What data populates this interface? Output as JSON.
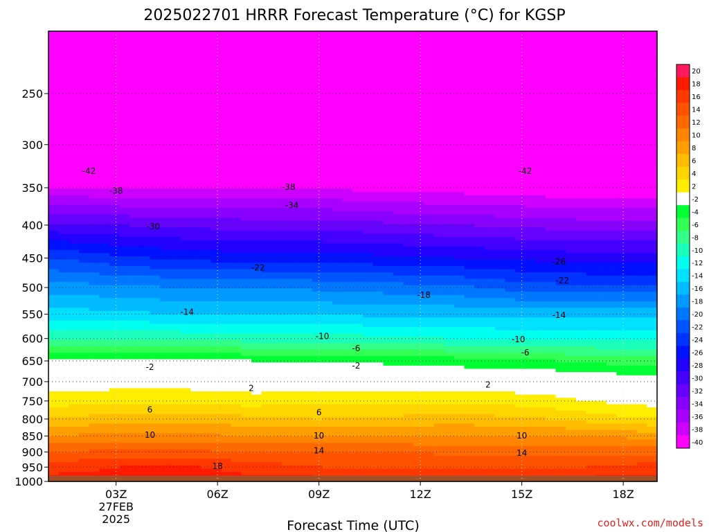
{
  "title": "2025022701 HRRR Forecast Temperature (°C) for KGSP",
  "credit": "coolwx.com/models",
  "colors": {
    "credit": "#e0201a",
    "ground": "#a0522d"
  },
  "chart_data": {
    "type": "heatmap",
    "title": "2025022701 HRRR Forecast Temperature (°C) for KGSP",
    "xlabel": "Forecast Time (UTC)",
    "ylabel": "",
    "x_range": [
      1,
      19
    ],
    "y_range": [
      1000,
      200
    ],
    "y_scale": "log-pressure",
    "x_ticks": [
      {
        "x": 3,
        "lines": [
          "03Z",
          "27FEB",
          "2025"
        ]
      },
      {
        "x": 6,
        "lines": [
          "06Z"
        ]
      },
      {
        "x": 9,
        "lines": [
          "09Z"
        ]
      },
      {
        "x": 12,
        "lines": [
          "12Z"
        ]
      },
      {
        "x": 15,
        "lines": [
          "15Z"
        ]
      },
      {
        "x": 18,
        "lines": [
          "18Z"
        ]
      }
    ],
    "y_ticks": [
      250,
      300,
      350,
      400,
      450,
      500,
      550,
      600,
      650,
      700,
      750,
      800,
      850,
      900,
      950,
      1000
    ],
    "grid": true,
    "legend": "colorbar-right",
    "colorbar": {
      "levels": [
        20,
        18,
        16,
        14,
        12,
        10,
        8,
        6,
        4,
        2,
        -2,
        -4,
        -6,
        -8,
        -10,
        -12,
        -14,
        -16,
        -18,
        -20,
        -22,
        -24,
        -26,
        -28,
        -30,
        -32,
        -34,
        -36,
        -38,
        -40
      ],
      "colors": [
        "#ff1a5e",
        "#ff1a00",
        "#ff3800",
        "#ff5300",
        "#ff6a00",
        "#ff8400",
        "#ff9e00",
        "#ffbd00",
        "#ffd500",
        "#ffee00",
        "#ffffff",
        "#00ff33",
        "#33ff55",
        "#33ff88",
        "#1affbb",
        "#00ffee",
        "#00e0ff",
        "#00bbff",
        "#0099ff",
        "#0077ff",
        "#0055ff",
        "#0033ff",
        "#0011ff",
        "#2200ff",
        "#4400ff",
        "#6600ff",
        "#8800ff",
        "#aa00ff",
        "#cc00ff",
        "#ff00ff"
      ]
    },
    "x": [
      1,
      3,
      5,
      7,
      9,
      11,
      13,
      15,
      17,
      19
    ],
    "pressure_levels": [
      1000,
      950,
      900,
      850,
      800,
      750,
      700,
      650,
      600,
      550,
      500,
      450,
      400,
      350,
      300,
      250,
      200
    ],
    "temperature": [
      [
        19,
        19,
        19,
        19,
        19,
        19,
        19,
        19,
        19,
        19
      ],
      [
        17,
        18,
        18.5,
        17,
        16,
        16,
        16,
        16,
        16,
        17
      ],
      [
        14,
        14.5,
        14.5,
        14,
        14,
        14,
        13.5,
        13.5,
        13.5,
        13.5
      ],
      [
        10,
        10.5,
        10.5,
        10,
        10,
        10,
        10,
        10,
        10,
        9
      ],
      [
        6,
        7,
        7.5,
        6.5,
        6,
        6.5,
        7,
        6.5,
        5,
        4
      ],
      [
        3,
        3.5,
        3.5,
        3,
        3.5,
        3.5,
        3.5,
        3,
        2,
        1
      ],
      [
        0.5,
        1,
        1,
        0.5,
        0.5,
        0.5,
        0.5,
        0.5,
        0,
        -1
      ],
      [
        -1,
        -1.5,
        -1.5,
        -2,
        -2,
        -2.5,
        -3,
        -3.5,
        -4.5,
        -5
      ],
      [
        -8,
        -8.5,
        -8.5,
        -9,
        -9,
        -9.5,
        -10,
        -10.5,
        -10.5,
        -10.5
      ],
      [
        -13,
        -13.5,
        -14,
        -14,
        -14,
        -14.5,
        -14.5,
        -14.5,
        -14.5,
        -14.5
      ],
      [
        -17,
        -17.5,
        -18,
        -18,
        -18.5,
        -19,
        -19.5,
        -21,
        -21.5,
        -21.5
      ],
      [
        -22,
        -23.5,
        -24.5,
        -25,
        -25,
        -25.5,
        -26,
        -26.5,
        -27,
        -27
      ],
      [
        -29.5,
        -30,
        -30.5,
        -31,
        -31,
        -31.5,
        -32,
        -32.5,
        -33,
        -33
      ],
      [
        -38,
        -38,
        -38,
        -38,
        -38,
        -39,
        -39,
        -39.5,
        -40,
        -40
      ],
      [
        -44,
        -44,
        -45,
        -45,
        -45,
        -45,
        -45,
        -45,
        -45,
        -45
      ],
      [
        -47,
        -47,
        -47,
        -47,
        -47,
        -47,
        -47,
        -47,
        -47,
        -47
      ],
      [
        -50,
        -50,
        -50,
        -50,
        -50,
        -50,
        -50,
        -50,
        -50,
        -50
      ]
    ],
    "contour_labels": [
      {
        "text": "-42",
        "x": 2.2,
        "p": 330
      },
      {
        "text": "-42",
        "x": 15.1,
        "p": 330
      },
      {
        "text": "-38",
        "x": 3.0,
        "p": 354
      },
      {
        "text": "-38",
        "x": 8.1,
        "p": 349
      },
      {
        "text": "-34",
        "x": 8.2,
        "p": 373
      },
      {
        "text": "-30",
        "x": 4.1,
        "p": 402
      },
      {
        "text": "-26",
        "x": 16.1,
        "p": 456
      },
      {
        "text": "-22",
        "x": 7.2,
        "p": 466
      },
      {
        "text": "-22",
        "x": 16.2,
        "p": 488
      },
      {
        "text": "-18",
        "x": 12.1,
        "p": 514
      },
      {
        "text": "-14",
        "x": 5.1,
        "p": 546
      },
      {
        "text": "-14",
        "x": 16.1,
        "p": 552
      },
      {
        "text": "-10",
        "x": 9.1,
        "p": 595
      },
      {
        "text": "-10",
        "x": 14.9,
        "p": 602
      },
      {
        "text": "-6",
        "x": 10.1,
        "p": 622
      },
      {
        "text": "-6",
        "x": 15.1,
        "p": 631
      },
      {
        "text": "-2",
        "x": 4.0,
        "p": 665
      },
      {
        "text": "-2",
        "x": 10.1,
        "p": 661
      },
      {
        "text": "2",
        "x": 7.0,
        "p": 717
      },
      {
        "text": "2",
        "x": 14.0,
        "p": 708
      },
      {
        "text": "6",
        "x": 4.0,
        "p": 774
      },
      {
        "text": "6",
        "x": 9.0,
        "p": 782
      },
      {
        "text": "10",
        "x": 4.0,
        "p": 847
      },
      {
        "text": "10",
        "x": 9.0,
        "p": 849
      },
      {
        "text": "10",
        "x": 15.0,
        "p": 849
      },
      {
        "text": "14",
        "x": 9.0,
        "p": 896
      },
      {
        "text": "14",
        "x": 15.0,
        "p": 903
      },
      {
        "text": "18",
        "x": 6.0,
        "p": 947
      }
    ]
  }
}
